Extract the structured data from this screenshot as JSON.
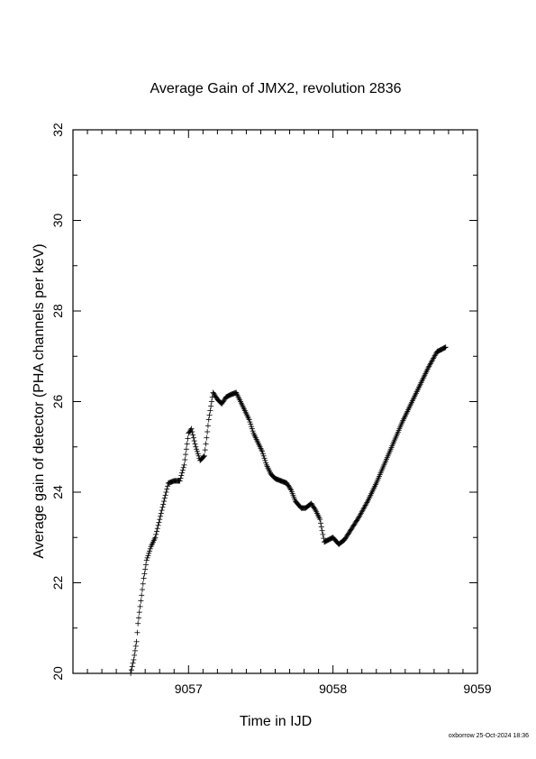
{
  "chart_data": {
    "type": "scatter",
    "title": "Average Gain of JMX2, revolution 2836",
    "xlabel": "Time in IJD",
    "ylabel": "Average gain of detector (PHA channels per keV)",
    "xlim": [
      9056.2,
      9059.0
    ],
    "ylim": [
      20,
      32
    ],
    "x_ticks": [
      9057,
      9058,
      9059
    ],
    "y_ticks": [
      20,
      22,
      24,
      26,
      28,
      30,
      32
    ],
    "x_minor_step": 0.1,
    "y_minor_step": 1,
    "marker": "plus",
    "grid": false,
    "series": [
      {
        "points": [
          [
            9056.6,
            20.0
          ],
          [
            9056.62,
            20.3
          ],
          [
            9056.64,
            20.7
          ],
          [
            9056.65,
            21.1
          ],
          [
            9056.67,
            21.6
          ],
          [
            9056.69,
            22.1
          ],
          [
            9056.71,
            22.5
          ],
          [
            9056.74,
            22.8
          ],
          [
            9056.77,
            23.0
          ],
          [
            9056.8,
            23.4
          ],
          [
            9056.83,
            23.8
          ],
          [
            9056.86,
            24.2
          ],
          [
            9056.9,
            24.25
          ],
          [
            9056.94,
            24.25
          ],
          [
            9056.97,
            24.6
          ],
          [
            9057.0,
            25.3
          ],
          [
            9057.02,
            25.4
          ],
          [
            9057.05,
            25.0
          ],
          [
            9057.08,
            24.7
          ],
          [
            9057.11,
            24.8
          ],
          [
            9057.14,
            25.6
          ],
          [
            9057.17,
            26.2
          ],
          [
            9057.2,
            26.05
          ],
          [
            9057.23,
            25.95
          ],
          [
            9057.26,
            26.1
          ],
          [
            9057.29,
            26.15
          ],
          [
            9057.33,
            26.2
          ],
          [
            9057.36,
            26.0
          ],
          [
            9057.39,
            25.8
          ],
          [
            9057.42,
            25.6
          ],
          [
            9057.45,
            25.3
          ],
          [
            9057.48,
            25.1
          ],
          [
            9057.51,
            24.9
          ],
          [
            9057.54,
            24.6
          ],
          [
            9057.57,
            24.4
          ],
          [
            9057.6,
            24.3
          ],
          [
            9057.64,
            24.25
          ],
          [
            9057.68,
            24.2
          ],
          [
            9057.71,
            24.05
          ],
          [
            9057.74,
            23.8
          ],
          [
            9057.78,
            23.65
          ],
          [
            9057.81,
            23.65
          ],
          [
            9057.85,
            23.75
          ],
          [
            9057.88,
            23.6
          ],
          [
            9057.91,
            23.4
          ],
          [
            9057.94,
            22.9
          ],
          [
            9057.97,
            22.95
          ],
          [
            9058.0,
            23.0
          ],
          [
            9058.04,
            22.85
          ],
          [
            9058.08,
            22.95
          ],
          [
            9058.13,
            23.2
          ],
          [
            9058.18,
            23.45
          ],
          [
            9058.24,
            23.8
          ],
          [
            9058.3,
            24.2
          ],
          [
            9058.36,
            24.65
          ],
          [
            9058.42,
            25.1
          ],
          [
            9058.48,
            25.55
          ],
          [
            9058.54,
            25.95
          ],
          [
            9058.6,
            26.35
          ],
          [
            9058.66,
            26.75
          ],
          [
            9058.72,
            27.1
          ],
          [
            9058.78,
            27.2
          ]
        ]
      }
    ]
  },
  "footer": "oxborrow 25-Oct-2024 18:36"
}
